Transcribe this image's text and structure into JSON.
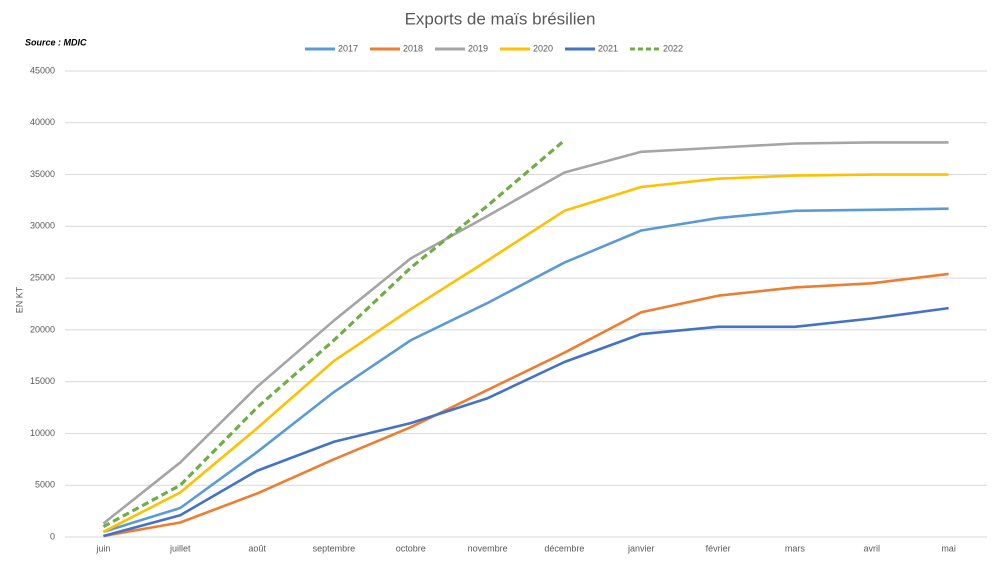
{
  "chart_data": {
    "type": "line",
    "title": "Exports de maïs brésilien",
    "annotation": "Source : MDIC",
    "y_label": "EN KT",
    "categories": [
      "juin",
      "juillet",
      "août",
      "septembre",
      "octobre",
      "novembre",
      "décembre",
      "janvier",
      "février",
      "mars",
      "avril",
      "mai"
    ],
    "series": [
      {
        "name": "2017",
        "color": "#5b9bd5",
        "dashed": false,
        "values": [
          500,
          2800,
          8200,
          14000,
          19000,
          22600,
          26500,
          29600,
          30800,
          31500,
          31600,
          31700
        ]
      },
      {
        "name": "2018",
        "color": "#ed7d31",
        "dashed": false,
        "values": [
          100,
          1400,
          4200,
          7500,
          10600,
          14200,
          17800,
          21700,
          23300,
          24100,
          24500,
          25400
        ]
      },
      {
        "name": "2019",
        "color": "#a5a5a5",
        "dashed": false,
        "values": [
          1300,
          7200,
          14500,
          20900,
          26900,
          31000,
          35200,
          37200,
          37600,
          38000,
          38100,
          38100
        ]
      },
      {
        "name": "2020",
        "color": "#ffc000",
        "dashed": false,
        "values": [
          500,
          4300,
          10500,
          17000,
          22000,
          26700,
          31500,
          33800,
          34600,
          34900,
          35000,
          35000
        ]
      },
      {
        "name": "2021",
        "color": "#4472c4",
        "dashed": false,
        "values": [
          100,
          2100,
          6400,
          9200,
          11000,
          13400,
          16900,
          19600,
          20300,
          20300,
          21100,
          22100
        ]
      },
      {
        "name": "2022",
        "color": "#70ad47",
        "dashed": true,
        "values": [
          1000,
          5000,
          12500,
          19000,
          26000,
          32000,
          38300,
          null,
          null,
          null,
          null,
          null
        ]
      }
    ],
    "ylim": [
      0,
      45000
    ],
    "yticks": [
      0,
      5000,
      10000,
      15000,
      20000,
      25000,
      30000,
      35000,
      40000,
      45000
    ],
    "grid": true
  }
}
